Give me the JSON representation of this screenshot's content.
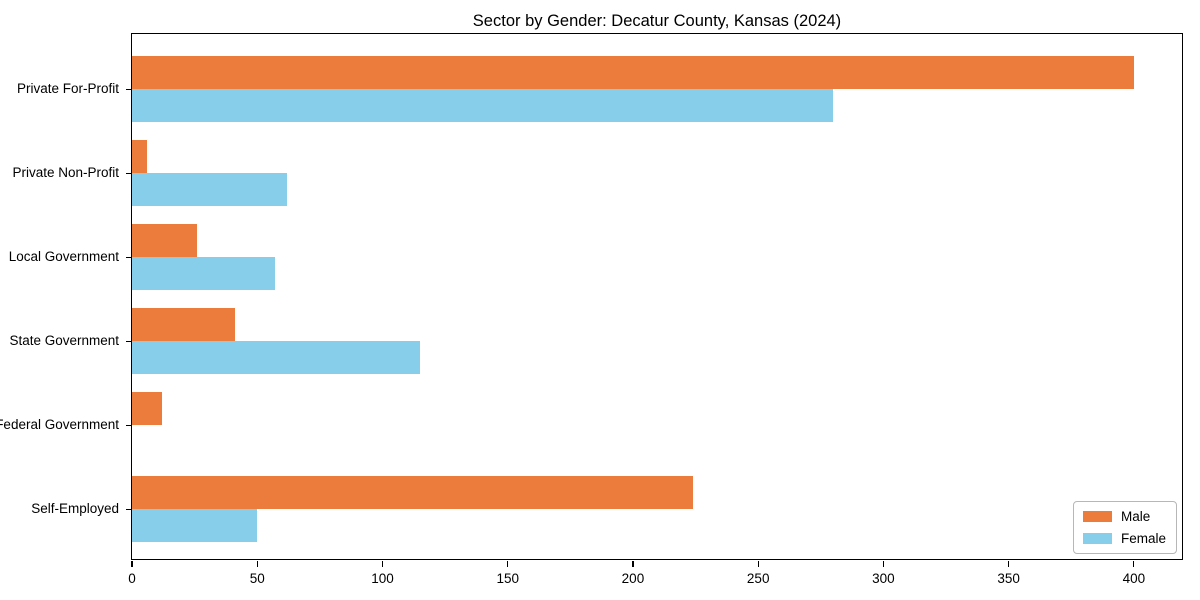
{
  "title": "Sector by Gender: Decatur County, Kansas (2024)",
  "chart_data": {
    "type": "bar",
    "orientation": "horizontal",
    "title": "Sector by Gender: Decatur County, Kansas (2024)",
    "categories": [
      "Private For-Profit",
      "Private Non-Profit",
      "Local Government",
      "State Government",
      "Federal Government",
      "Self-Employed"
    ],
    "series": [
      {
        "name": "Male",
        "color": "#ec7c3b",
        "values": [
          400,
          6,
          26,
          41,
          12,
          224
        ]
      },
      {
        "name": "Female",
        "color": "#87ceeb",
        "values": [
          280,
          62,
          57,
          115,
          0,
          50
        ]
      }
    ],
    "xlabel": "",
    "ylabel": "",
    "xlim": [
      0,
      420
    ],
    "x_ticks": [
      0,
      50,
      100,
      150,
      200,
      250,
      300,
      350,
      400
    ],
    "grid": false,
    "legend_position": "lower right",
    "axis_color": "#000000",
    "background_color": "#ffffff"
  }
}
